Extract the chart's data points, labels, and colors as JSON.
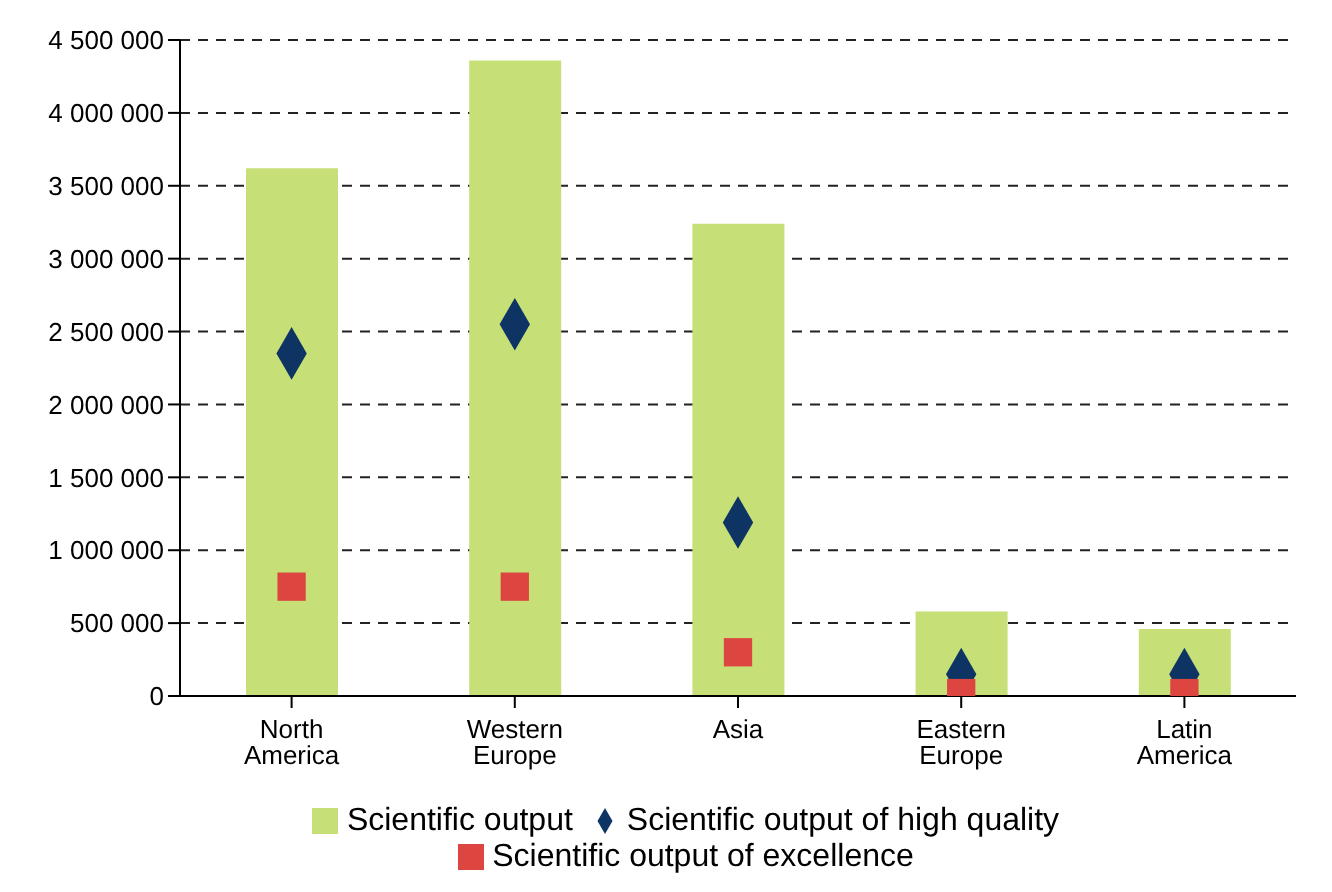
{
  "chart_data": {
    "type": "bar",
    "categories": [
      "North America",
      "Western Europe",
      "Asia",
      "Eastern Europe",
      "Latin America"
    ],
    "series": [
      {
        "name": "Scientific output",
        "color": "#c6df77",
        "values": [
          3620000,
          4360000,
          3240000,
          580000,
          460000
        ]
      },
      {
        "name": "Scientific output of high quality",
        "type": "scatter",
        "marker": "diamond",
        "color": "#0e3464",
        "values": [
          2350000,
          2550000,
          1190000,
          150000,
          150000
        ]
      },
      {
        "name": "Scientific output of excellence",
        "type": "scatter",
        "marker": "square",
        "color": "#dc4540",
        "values": [
          750000,
          750000,
          300000,
          20000,
          20000
        ]
      }
    ],
    "ylim": [
      0,
      4500000
    ],
    "yticks": [
      {
        "value": 0,
        "label": "0"
      },
      {
        "value": 500000,
        "label": "500 000"
      },
      {
        "value": 1000000,
        "label": "1 000 000"
      },
      {
        "value": 1500000,
        "label": "1 500 000"
      },
      {
        "value": 2000000,
        "label": "2 000 000"
      },
      {
        "value": 2500000,
        "label": "2 500 000"
      },
      {
        "value": 3000000,
        "label": "3 000 000"
      },
      {
        "value": 3500000,
        "label": "3 500 000"
      },
      {
        "value": 4000000,
        "label": "4 000 000"
      },
      {
        "value": 4500000,
        "label": "4 500 000"
      }
    ],
    "grid": "y",
    "legend": "bottom"
  }
}
